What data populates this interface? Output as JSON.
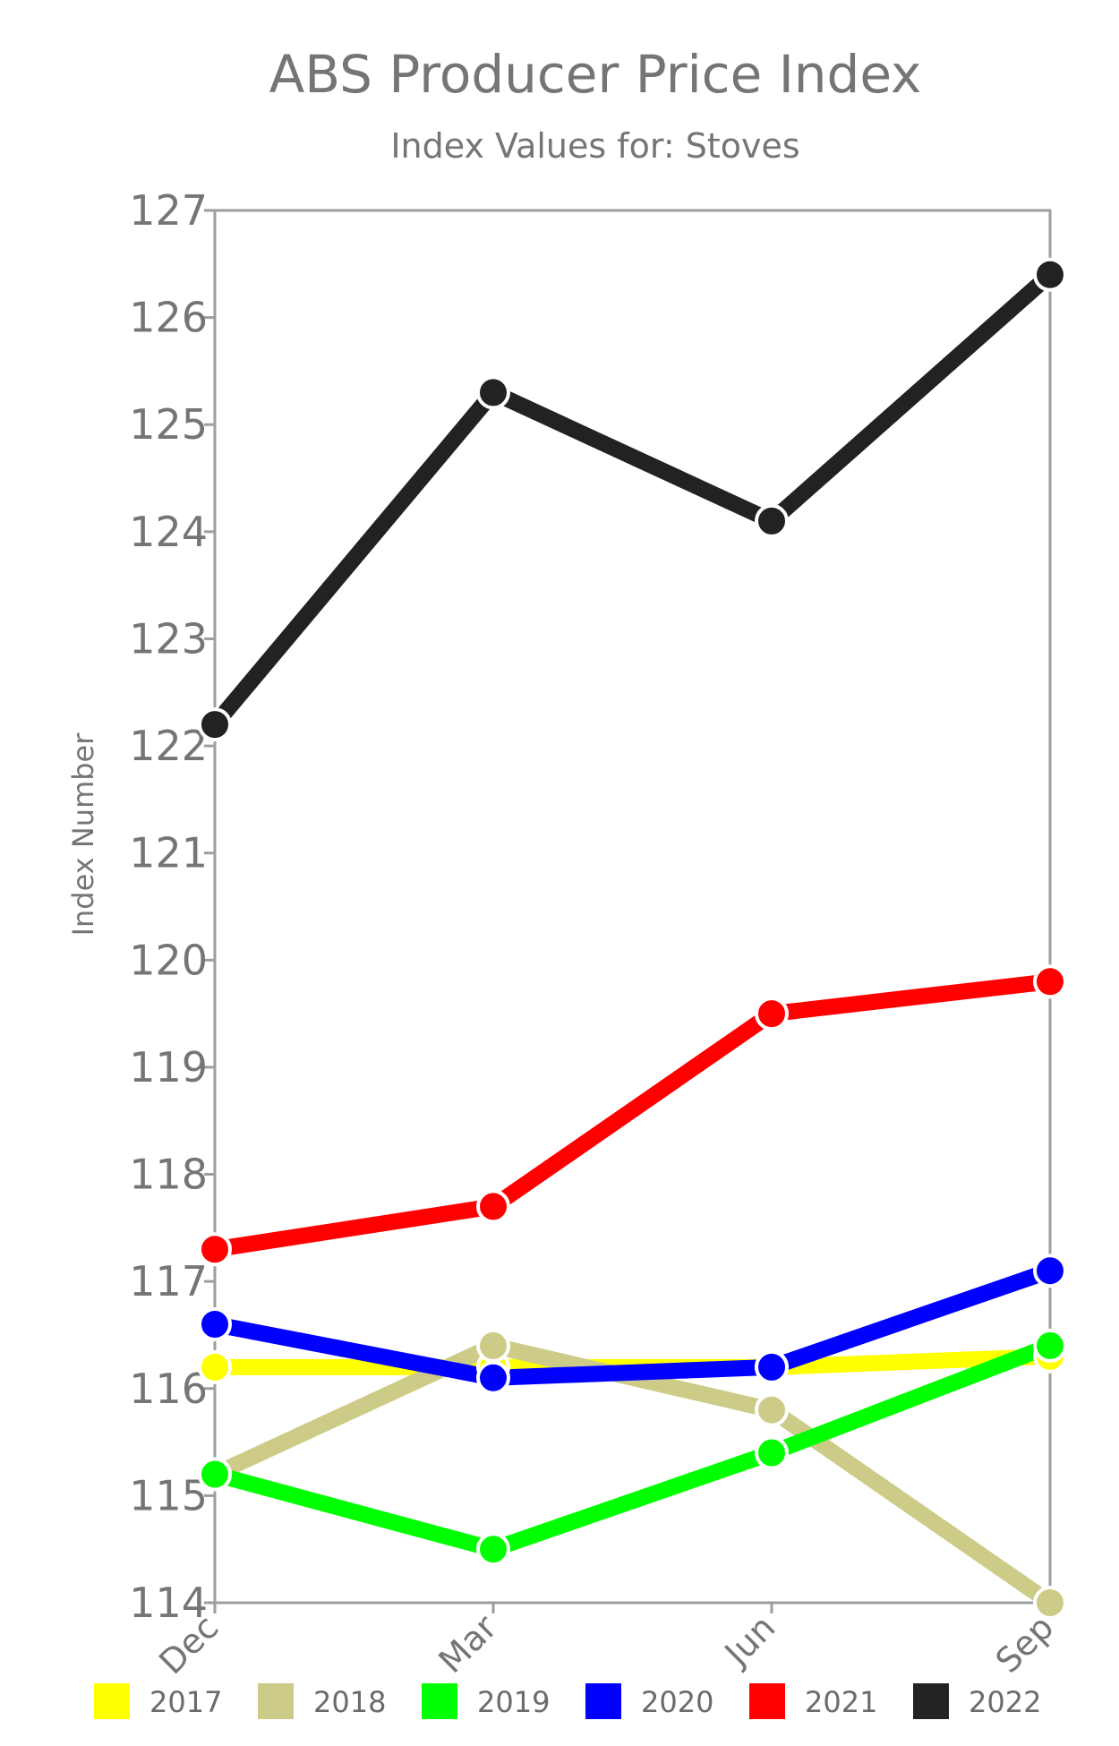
{
  "chart_data": {
    "type": "line",
    "title": "ABS Producer Price Index",
    "subtitle": "Index Values for: Stoves",
    "xlabel": "",
    "ylabel": "Index Number",
    "categories": [
      "Dec",
      "Mar",
      "Jun",
      "Sep"
    ],
    "ylim": [
      114,
      127
    ],
    "yticks": [
      114,
      115,
      116,
      117,
      118,
      119,
      120,
      121,
      122,
      123,
      124,
      125,
      126,
      127
    ],
    "grid": false,
    "legend_position": "bottom",
    "series": [
      {
        "name": "2017",
        "color": "#ffff00",
        "values": [
          116.2,
          116.2,
          116.2,
          116.3
        ]
      },
      {
        "name": "2018",
        "color": "#cccc88",
        "values": [
          115.2,
          116.4,
          115.8,
          114.0
        ]
      },
      {
        "name": "2019",
        "color": "#00ff00",
        "values": [
          115.2,
          114.5,
          115.4,
          116.4
        ]
      },
      {
        "name": "2020",
        "color": "#0000ff",
        "values": [
          116.6,
          116.1,
          116.2,
          117.1
        ]
      },
      {
        "name": "2021",
        "color": "#ff0000",
        "values": [
          117.3,
          117.7,
          119.5,
          119.8
        ]
      },
      {
        "name": "2022",
        "color": "#222222",
        "values": [
          122.2,
          125.3,
          124.1,
          126.4
        ]
      }
    ]
  }
}
